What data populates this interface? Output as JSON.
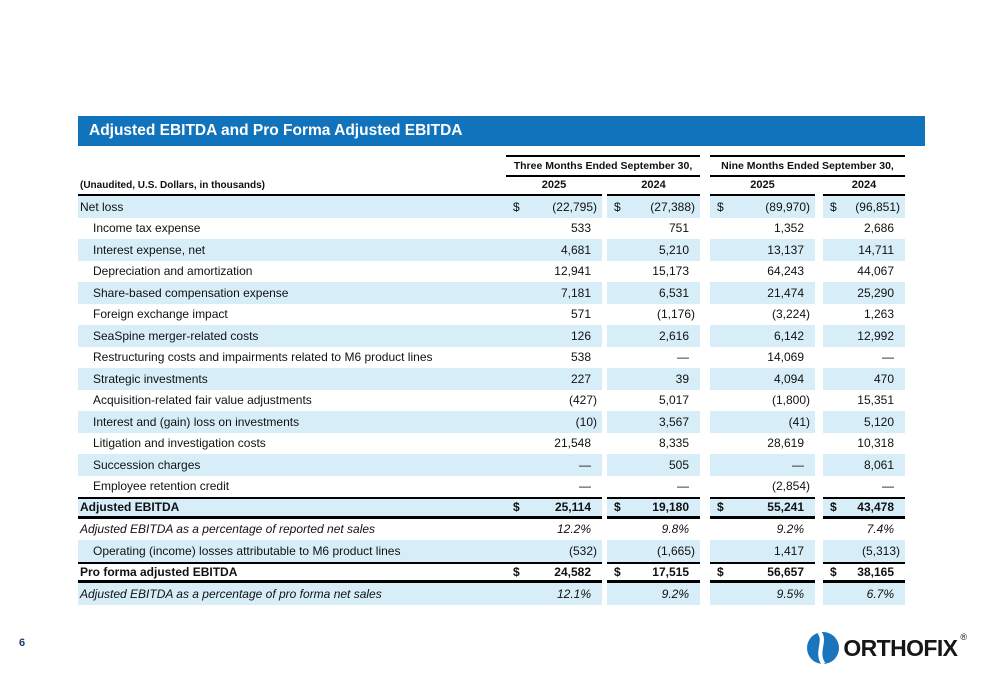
{
  "title": "Adjusted EBITDA and Pro Forma Adjusted EBITDA",
  "colors": {
    "title_bar": "#1173BB",
    "row_highlight": "#D7EEF9",
    "logo_blue": "#1B75BC",
    "page_number_color": "#1E3C6E"
  },
  "table": {
    "note": "(Unaudited, U.S. Dollars, in thousands)",
    "groups": [
      {
        "label": "Three Months Ended September 30,",
        "years": [
          "2025",
          "2024"
        ]
      },
      {
        "label": "Nine Months Ended September 30,",
        "years": [
          "2025",
          "2024"
        ]
      }
    ],
    "rows": [
      {
        "label": "Net loss",
        "indent": false,
        "dollar": true,
        "shade": true,
        "values": [
          "(22,795)",
          "(27,388)",
          "(89,970)",
          "(96,851)"
        ]
      },
      {
        "label": "Income tax expense",
        "indent": true,
        "shade": false,
        "values": [
          "533",
          "751",
          "1,352",
          "2,686"
        ]
      },
      {
        "label": "Interest expense, net",
        "indent": true,
        "shade": true,
        "values": [
          "4,681",
          "5,210",
          "13,137",
          "14,711"
        ]
      },
      {
        "label": "Depreciation and amortization",
        "indent": true,
        "shade": false,
        "values": [
          "12,941",
          "15,173",
          "64,243",
          "44,067"
        ]
      },
      {
        "label": "Share-based compensation expense",
        "indent": true,
        "shade": true,
        "values": [
          "7,181",
          "6,531",
          "21,474",
          "25,290"
        ]
      },
      {
        "label": "Foreign exchange impact",
        "indent": true,
        "shade": false,
        "values": [
          "571",
          "(1,176)",
          "(3,224)",
          "1,263"
        ]
      },
      {
        "label": "SeaSpine merger-related costs",
        "indent": true,
        "shade": true,
        "values": [
          "126",
          "2,616",
          "6,142",
          "12,992"
        ]
      },
      {
        "label": "Restructuring costs and impairments related to M6 product lines",
        "indent": true,
        "shade": false,
        "values": [
          "538",
          "—",
          "14,069",
          "—"
        ]
      },
      {
        "label": "Strategic investments",
        "indent": true,
        "shade": true,
        "values": [
          "227",
          "39",
          "4,094",
          "470"
        ]
      },
      {
        "label": "Acquisition-related fair value adjustments",
        "indent": true,
        "shade": false,
        "values": [
          "(427)",
          "5,017",
          "(1,800)",
          "15,351"
        ]
      },
      {
        "label": "Interest and (gain) loss on investments",
        "indent": true,
        "shade": true,
        "values": [
          "(10)",
          "3,567",
          "(41)",
          "5,120"
        ]
      },
      {
        "label": "Litigation and investigation costs",
        "indent": true,
        "shade": false,
        "values": [
          "21,548",
          "8,335",
          "28,619",
          "10,318"
        ]
      },
      {
        "label": "Succession charges",
        "indent": true,
        "shade": true,
        "values": [
          "—",
          "505",
          "—",
          "8,061"
        ]
      },
      {
        "label": "Employee retention credit",
        "indent": true,
        "shade": false,
        "values": [
          "—",
          "—",
          "(2,854)",
          "—"
        ]
      },
      {
        "label": "Adjusted EBITDA",
        "indent": false,
        "dollar": true,
        "shade": true,
        "total": true,
        "values": [
          "25,114",
          "19,180",
          "55,241",
          "43,478"
        ]
      },
      {
        "label": "Adjusted EBITDA as a percentage of reported net sales",
        "indent": false,
        "italic": true,
        "shade": false,
        "values": [
          "12.2%",
          "9.8%",
          "9.2%",
          "7.4%"
        ]
      },
      {
        "label": "Operating (income) losses attributable to M6 product lines",
        "indent": true,
        "shade": true,
        "values": [
          "(532)",
          "(1,665)",
          "1,417",
          "(5,313)"
        ]
      },
      {
        "label": "Pro forma adjusted EBITDA",
        "indent": false,
        "dollar": true,
        "shade": false,
        "total": true,
        "values": [
          "24,582",
          "17,515",
          "56,657",
          "38,165"
        ]
      },
      {
        "label": "Adjusted EBITDA as a percentage of pro forma net sales",
        "indent": false,
        "italic": true,
        "shade": true,
        "values": [
          "12.1%",
          "9.2%",
          "9.5%",
          "6.7%"
        ]
      }
    ]
  },
  "footer": {
    "page_number": "6",
    "logo_text": "ORTHOFIX",
    "logo_reg": "®"
  }
}
